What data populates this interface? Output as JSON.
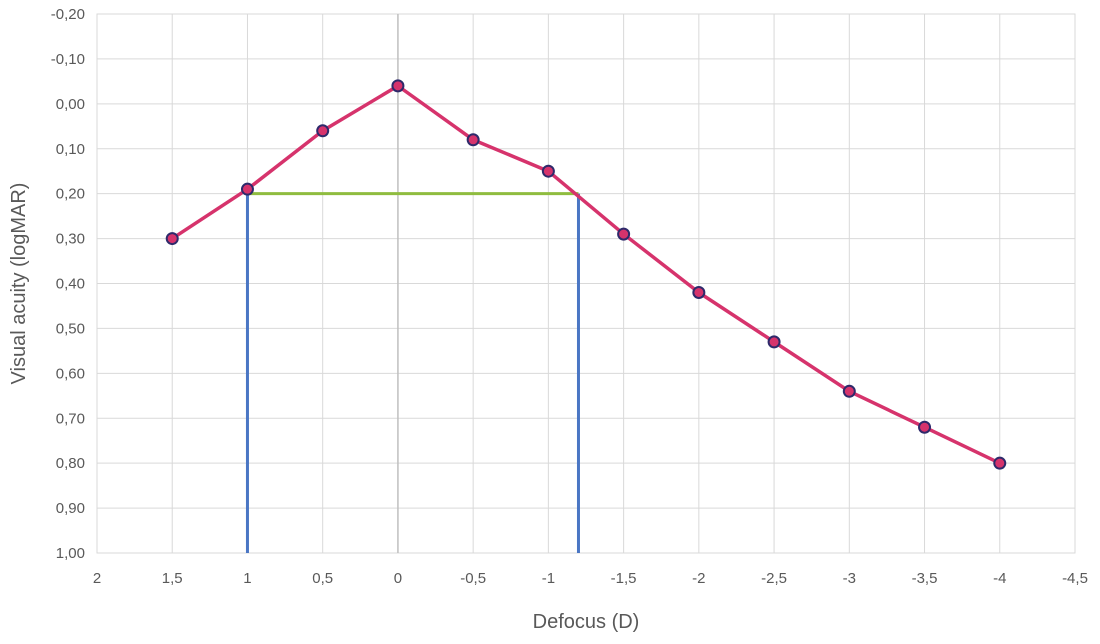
{
  "chart_data": {
    "type": "line",
    "title": "",
    "xlabel": "Defocus (D)",
    "ylabel": "Visual acuity (logMAR)",
    "x_ticks": [
      "2",
      "1,5",
      "1",
      "0,5",
      "0",
      "-0,5",
      "-1",
      "-1,5",
      "-2",
      "-2,5",
      "-3",
      "-3,5",
      "-4",
      "-4,5"
    ],
    "y_ticks": [
      "-0,20",
      "-0,10",
      "0,00",
      "0,10",
      "0,20",
      "0,30",
      "0,40",
      "0,50",
      "0,60",
      "0,70",
      "0,80",
      "0,90",
      "1,00"
    ],
    "xlim": [
      2,
      -4.5
    ],
    "ylim": [
      -0.2,
      1.0
    ],
    "y_inverted": true,
    "grid": true,
    "series": [
      {
        "x": [
          1.5,
          1,
          0.5,
          0,
          -0.5,
          -1,
          -1.5,
          -2,
          -2.5,
          -3,
          -3.5,
          -4
        ],
        "y": [
          0.3,
          0.19,
          0.06,
          -0.04,
          0.08,
          0.15,
          0.29,
          0.42,
          0.53,
          0.64,
          0.72,
          0.8
        ],
        "color": "#d6336c",
        "marker_fill": "#d6336c",
        "marker_edge": "#2e2a6b"
      }
    ],
    "annotations": [
      {
        "type": "hline",
        "y": 0.2,
        "x_from": 1,
        "x_to": -1.2,
        "color": "#8fbc3f"
      },
      {
        "type": "vline",
        "x": 1,
        "y_from": 0.2,
        "y_to": 1.0,
        "color": "#4a76c4"
      },
      {
        "type": "vline",
        "x": -1.2,
        "y_from": 0.2,
        "y_to": 1.0,
        "color": "#4a76c4"
      }
    ]
  }
}
